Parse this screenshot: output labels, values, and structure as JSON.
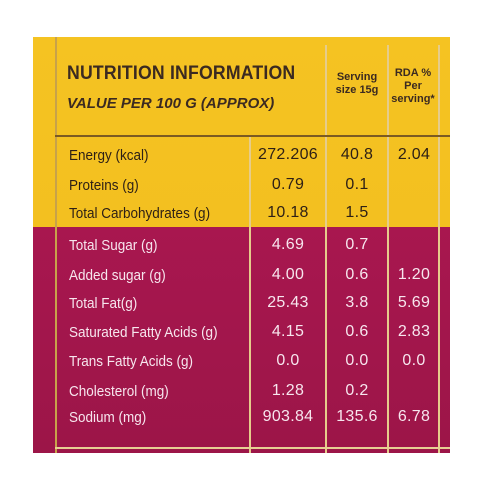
{
  "header": {
    "title": "NUTRITION INFORMATION",
    "subtitle": "VALUE PER 100 G (APPROX)",
    "serving_header": "Serving\nsize 15g",
    "rda_header": "RDA %\nPer\nserving*"
  },
  "rows": [
    {
      "label": "Energy (kcal)",
      "per100": "272.206",
      "serving": "40.8",
      "rda": "2.04"
    },
    {
      "label": "Proteins (g)",
      "per100": "0.79",
      "serving": "0.1",
      "rda": ""
    },
    {
      "label": "Total Carbohydrates (g)",
      "per100": "10.18",
      "serving": "1.5",
      "rda": ""
    },
    {
      "label": "Total Sugar (g)",
      "per100": "4.69",
      "serving": "0.7",
      "rda": ""
    },
    {
      "label": "Added sugar (g)",
      "per100": "4.00",
      "serving": "0.6",
      "rda": "1.20"
    },
    {
      "label": "Total Fat(g)",
      "per100": "25.43",
      "serving": "3.8",
      "rda": "5.69"
    },
    {
      "label": "Saturated Fatty Acids (g)",
      "per100": "4.15",
      "serving": "0.6",
      "rda": "2.83"
    },
    {
      "label": "Trans Fatty Acids (g)",
      "per100": "0.0",
      "serving": "0.0",
      "rda": "0.0"
    },
    {
      "label": "Cholesterol (mg)",
      "per100": "1.28",
      "serving": "0.2",
      "rda": ""
    },
    {
      "label": "Sodium (mg)",
      "per100": "903.84",
      "serving": "135.6",
      "rda": "6.78"
    }
  ],
  "colors": {
    "yellow_band": "#f5c322",
    "magenta_band": "#a8174f",
    "dark_text": "#2e2016",
    "light_text": "#f7e6ee"
  }
}
